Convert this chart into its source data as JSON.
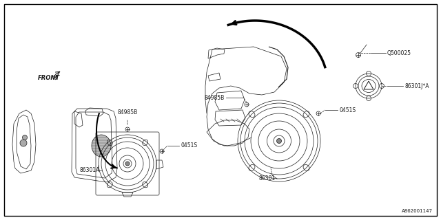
{
  "bg_color": "#ffffff",
  "border_color": "#000000",
  "line_color": "#1a1a1a",
  "part_numbers": {
    "top_screw": "Q500025",
    "top_tweeter": "86301J*A",
    "screw1_left": "84985B",
    "screw2_left": "0451S",
    "left_speaker_label": "86301A",
    "screw1_right": "84985B",
    "screw2_right": "0451S",
    "right_speaker_label": "86301",
    "front_label": "FRONT"
  },
  "diagram_id": "A862001147"
}
